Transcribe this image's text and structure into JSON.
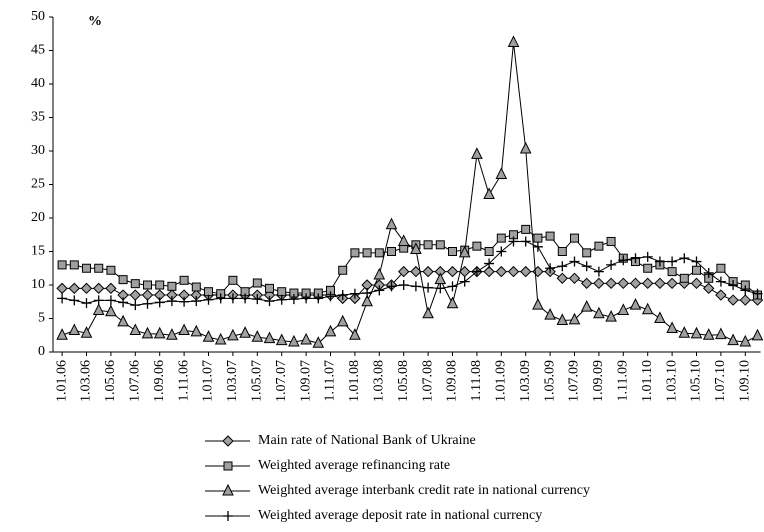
{
  "chart_data": {
    "type": "line",
    "y_unit_label": "%",
    "categories": [
      "1.01.06",
      null,
      "1.03.06",
      null,
      "1.05.06",
      null,
      "1.07.06",
      null,
      "1.09.06",
      null,
      "1.11.06",
      null,
      "1.01.07",
      null,
      "1.03.07",
      null,
      "1.05.07",
      null,
      "1.07.07",
      null,
      "1.09.07",
      null,
      "1.11.07",
      null,
      "1.01.08",
      null,
      "1.03.08",
      null,
      "1.05.08",
      null,
      "1.07.08",
      null,
      "1.09.08",
      null,
      "1.11.08",
      null,
      "1.01.09",
      null,
      "1.03.09",
      null,
      "1.05.09",
      null,
      "1.07.09",
      null,
      "1.09.09",
      null,
      "1.11.09",
      null,
      "1.01.10",
      null,
      "1.03.10",
      null,
      "1.05.10",
      null,
      "1.07.10",
      null,
      "1.09.10",
      null
    ],
    "series": [
      {
        "name": "Main rate of National Bank of Ukraine",
        "color": "#000000",
        "marker": "diamond",
        "marker_color": "#a0a0a0",
        "values": [
          9.5,
          9.5,
          9.5,
          9.5,
          9.5,
          8.5,
          8.5,
          8.5,
          8.5,
          8.5,
          8.5,
          8.5,
          8.5,
          8.5,
          8.5,
          8.5,
          8.5,
          8.5,
          8.5,
          8.5,
          8.5,
          8.5,
          8.5,
          8,
          8,
          10,
          10,
          10,
          12,
          12,
          12,
          12,
          12,
          12,
          12,
          12,
          12,
          12,
          12,
          12,
          12,
          11,
          11,
          10.25,
          10.25,
          10.25,
          10.25,
          10.25,
          10.25,
          10.25,
          10.25,
          10.25,
          10.25,
          9.5,
          8.5,
          7.75,
          7.75,
          7.75
        ]
      },
      {
        "name": "Weighted average refinancing rate",
        "color": "#000000",
        "marker": "square",
        "marker_color": "#a0a0a0",
        "values": [
          13,
          13,
          12.5,
          12.5,
          12.2,
          10.8,
          10.2,
          10,
          10,
          9.8,
          10.7,
          9.7,
          9,
          8.7,
          10.7,
          9,
          10.3,
          9.5,
          9,
          8.8,
          8.8,
          8.8,
          9.2,
          12.2,
          14.8,
          14.8,
          14.8,
          15,
          15.5,
          16,
          16,
          16,
          15,
          15.2,
          15.8,
          15,
          17,
          17.5,
          18.3,
          17,
          17.3,
          15,
          17,
          14.8,
          15.8,
          16.5,
          14,
          13.5,
          12.5,
          13,
          12,
          11,
          12.2,
          11,
          12.5,
          10.5,
          10,
          8.5
        ]
      },
      {
        "name": "Weighted average  interbank credit rate in national currency",
        "color": "#000000",
        "marker": "triangle",
        "marker_color": "#a0a0a0",
        "values": [
          2.5,
          3.2,
          2.8,
          6.2,
          6,
          4.5,
          3.2,
          2.7,
          2.7,
          2.5,
          3.2,
          3,
          2.2,
          1.8,
          2.4,
          2.8,
          2.2,
          2,
          1.7,
          1.5,
          1.8,
          1.3,
          3,
          4.5,
          2.5,
          7.5,
          11.5,
          19,
          16.5,
          15.3,
          5.7,
          10.8,
          7.2,
          14.8,
          29.5,
          23.5,
          26.5,
          46.2,
          30.3,
          7,
          5.5,
          4.7,
          4.8,
          6.7,
          5.7,
          5.2,
          6.2,
          7,
          6.3,
          5,
          3.5,
          2.8,
          2.7,
          2.5,
          2.6,
          1.7,
          1.5,
          2.4
        ]
      },
      {
        "name": "Weighted average deposit rate in national currency",
        "color": "#000000",
        "marker": "plus",
        "marker_color": "#000000",
        "values": [
          8,
          7.7,
          7.3,
          7.7,
          7.7,
          7.4,
          7,
          7.2,
          7.4,
          7.6,
          7.5,
          7.6,
          7.8,
          8,
          8,
          8,
          7.9,
          7.6,
          7.8,
          7.9,
          8,
          8,
          8.3,
          8.5,
          8.7,
          8.8,
          9.2,
          9.8,
          10,
          9.8,
          9.6,
          9.5,
          9.8,
          10.5,
          12,
          13.2,
          15,
          16.5,
          16.5,
          15.7,
          12.5,
          12.8,
          13.5,
          12.8,
          12,
          13,
          13.7,
          14,
          14.2,
          13.5,
          13.5,
          14,
          13.5,
          11.8,
          10.5,
          10,
          9.2,
          8.7
        ]
      }
    ],
    "ylim": [
      0,
      50
    ],
    "yticks": [
      0,
      5,
      10,
      15,
      20,
      25,
      30,
      35,
      40,
      45,
      50
    ],
    "grid": false
  }
}
